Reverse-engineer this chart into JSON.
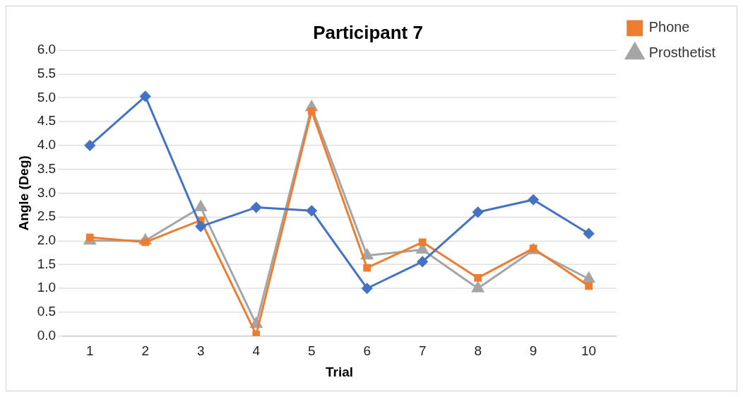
{
  "chart_data": {
    "type": "line",
    "title": "Participant 7",
    "xlabel": "Trial",
    "ylabel": "Angle (Deg)",
    "categories": [
      "1",
      "2",
      "3",
      "4",
      "5",
      "6",
      "7",
      "8",
      "9",
      "10"
    ],
    "series": [
      {
        "color": "#4472c4",
        "marker": "diamond",
        "values": [
          4.0,
          5.03,
          2.3,
          2.7,
          2.63,
          1.0,
          1.56,
          2.6,
          2.86,
          2.15
        ]
      },
      {
        "name": "Phone",
        "color": "#ed7d31",
        "marker": "square",
        "values": [
          2.07,
          1.97,
          2.43,
          0.03,
          4.72,
          1.43,
          1.97,
          1.22,
          1.84,
          1.05
        ]
      },
      {
        "name": "Prosthetist",
        "color": "#a5a5a5",
        "marker": "triangle",
        "values": [
          2.0,
          2.0,
          2.7,
          0.25,
          4.8,
          1.69,
          1.81,
          1.0,
          1.8,
          1.2
        ]
      }
    ],
    "ylim": [
      0,
      6
    ],
    "yticks": [
      {
        "value": 0,
        "label": "0.0"
      },
      {
        "value": 0.5,
        "label": "0.5"
      },
      {
        "value": 1,
        "label": "1.0"
      },
      {
        "value": 1.5,
        "label": "1.5"
      },
      {
        "value": 2,
        "label": "2.0"
      },
      {
        "value": 2.5,
        "label": "2.5"
      },
      {
        "value": 3,
        "label": "3.0"
      },
      {
        "value": 3.5,
        "label": "3.5"
      },
      {
        "value": 4,
        "label": "4.0"
      },
      {
        "value": 4.5,
        "label": "4.5"
      },
      {
        "value": 5,
        "label": "5.0"
      },
      {
        "value": 5.5,
        "label": "5.5"
      },
      {
        "value": 6,
        "label": "6.0"
      }
    ],
    "grid": "y",
    "legend": "top right",
    "line_style": "solid"
  }
}
